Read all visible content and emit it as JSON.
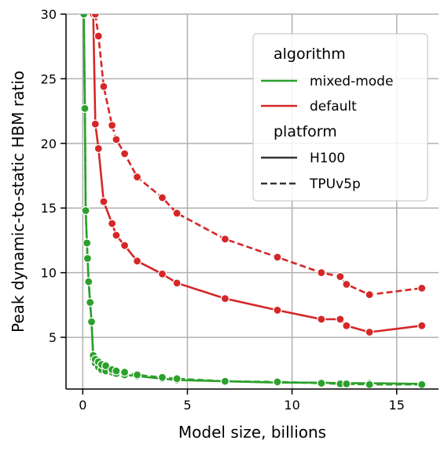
{
  "chart_data": {
    "type": "line",
    "title": "",
    "xlabel": "Model size, billions",
    "ylabel": "Peak dynamic-to-static HBM ratio",
    "xlim": [
      -0.8,
      17.0
    ],
    "ylim": [
      1.0,
      30.0
    ],
    "xticks": [
      0,
      5,
      10,
      15
    ],
    "yticks": [
      5,
      10,
      15,
      20,
      25,
      30
    ],
    "grid": true,
    "legend": {
      "placement": "top-right",
      "hue_title": "algorithm",
      "style_title": "platform",
      "hue_entries": [
        {
          "label": "mixed-mode",
          "color": "#2ca02c"
        },
        {
          "label": "default",
          "color": "#d62728"
        }
      ],
      "style_entries": [
        {
          "label": "H100",
          "dash": "solid"
        },
        {
          "label": "TPUv5p",
          "dash": "dashed"
        }
      ]
    },
    "series": [
      {
        "algorithm": "mixed-mode",
        "platform": "H100",
        "color": "#2ca02c",
        "dash": "solid",
        "x": [
          0.05,
          0.1,
          0.14,
          0.2,
          0.23,
          0.28,
          0.35,
          0.42,
          0.5,
          0.6,
          0.75,
          0.9,
          1.1,
          1.4,
          1.6,
          2.0,
          2.6,
          3.8,
          4.5,
          6.8,
          9.3,
          11.4,
          12.3,
          12.6,
          13.7,
          16.2
        ],
        "y": [
          30.0,
          22.7,
          14.8,
          12.3,
          11.1,
          9.3,
          7.7,
          6.2,
          3.4,
          3.0,
          2.7,
          2.5,
          2.4,
          2.3,
          2.2,
          2.1,
          2.0,
          1.8,
          1.7,
          1.6,
          1.5,
          1.5,
          1.45,
          1.45,
          1.45,
          1.4
        ]
      },
      {
        "algorithm": "mixed-mode",
        "platform": "TPUv5p",
        "color": "#2ca02c",
        "dash": "dashed",
        "x": [
          0.05,
          0.1,
          0.14,
          0.2,
          0.23,
          0.28,
          0.35,
          0.42,
          0.5,
          0.6,
          0.75,
          0.9,
          1.1,
          1.4,
          1.6,
          2.0,
          2.6,
          3.8,
          4.5,
          6.8,
          9.3,
          11.4,
          12.3,
          12.6,
          13.7,
          16.2
        ],
        "y": [
          30.0,
          22.7,
          14.8,
          12.3,
          11.1,
          9.3,
          7.7,
          6.2,
          3.6,
          3.3,
          3.1,
          2.9,
          2.8,
          2.5,
          2.4,
          2.3,
          2.1,
          1.9,
          1.8,
          1.6,
          1.55,
          1.45,
          1.4,
          1.4,
          1.35,
          1.35
        ]
      },
      {
        "algorithm": "default",
        "platform": "H100",
        "color": "#d62728",
        "dash": "solid",
        "x": [
          0.5,
          0.6,
          0.75,
          1.0,
          1.4,
          1.6,
          2.0,
          2.6,
          3.8,
          4.5,
          6.8,
          9.3,
          11.4,
          12.3,
          12.6,
          13.7,
          16.2
        ],
        "y": [
          30.0,
          21.5,
          19.6,
          15.5,
          13.8,
          12.9,
          12.1,
          10.9,
          9.9,
          9.2,
          8.0,
          7.1,
          6.4,
          6.4,
          5.9,
          5.4,
          5.9
        ]
      },
      {
        "algorithm": "default",
        "platform": "TPUv5p",
        "color": "#d62728",
        "dash": "dashed",
        "x": [
          0.6,
          0.75,
          1.0,
          1.4,
          1.6,
          2.0,
          2.6,
          3.8,
          4.5,
          6.8,
          9.3,
          11.4,
          12.3,
          12.6,
          13.7,
          16.2
        ],
        "y": [
          30.0,
          28.3,
          24.4,
          21.4,
          20.3,
          19.2,
          17.4,
          15.8,
          14.6,
          12.6,
          11.2,
          10.0,
          9.7,
          9.1,
          8.3,
          8.8
        ]
      }
    ]
  }
}
